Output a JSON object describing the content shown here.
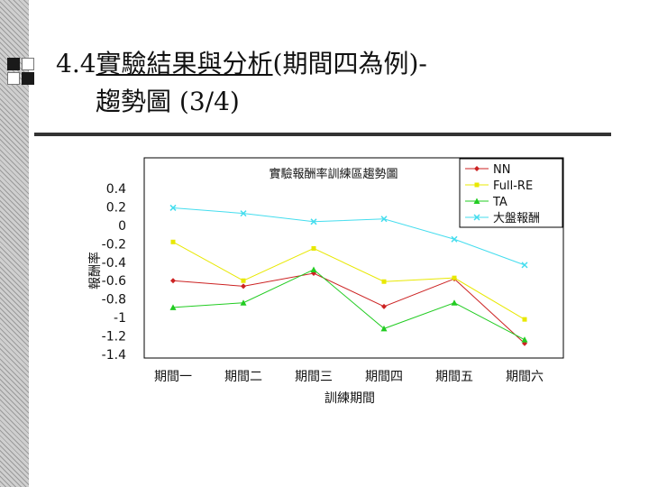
{
  "slide": {
    "title_prefix": "4.4",
    "title_underlined": "實驗結果與分析",
    "title_suffix": "(期間四為例)-",
    "title_line2": "趨勢圖 (3/4)"
  },
  "colors": {
    "NN": "#cc2222",
    "Full-RE": "#e8e800",
    "TA": "#22cc22",
    "benchmark": "#44ddee"
  },
  "chart_data": {
    "type": "line",
    "title": "實驗報酬率訓練區趨勢圖",
    "xlabel": "訓練期間",
    "ylabel": "報酬率",
    "categories": [
      "期間一",
      "期間二",
      "期間三",
      "期間四",
      "期間五",
      "期間六"
    ],
    "ylim": [
      -1.4,
      0.4
    ],
    "yticks": [
      0.4,
      0.2,
      0,
      -0.2,
      -0.4,
      -0.6,
      -0.8,
      -1,
      -1.2,
      -1.4
    ],
    "grid": false,
    "legend": "top-right",
    "series": [
      {
        "name": "NN",
        "marker": "diamond",
        "values": [
          -0.6,
          -0.66,
          -0.52,
          -0.88,
          -0.58,
          -1.28
        ]
      },
      {
        "name": "Full-RE",
        "marker": "square",
        "values": [
          -0.18,
          -0.6,
          -0.25,
          -0.61,
          -0.57,
          -1.02
        ]
      },
      {
        "name": "TA",
        "marker": "triangle",
        "values": [
          -0.89,
          -0.84,
          -0.48,
          -1.12,
          -0.84,
          -1.24
        ]
      },
      {
        "name": "大盤報酬",
        "marker": "x",
        "values": [
          0.19,
          0.13,
          0.04,
          0.07,
          -0.15,
          -0.43
        ]
      }
    ]
  }
}
